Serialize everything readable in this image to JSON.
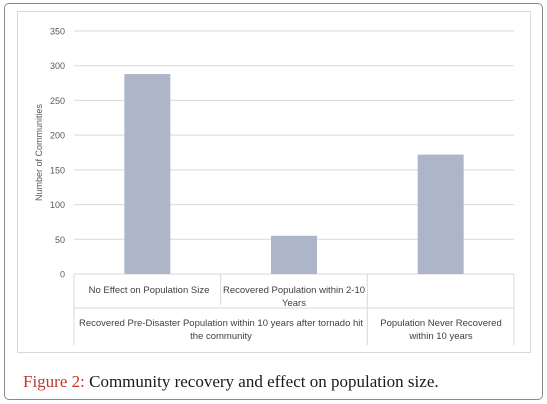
{
  "chart_data": {
    "type": "bar",
    "categories": [
      "No Effect on Population Size",
      "Recovered Population within 2-10 Years",
      "Population Never Recovered within 10 years"
    ],
    "values": [
      288,
      55,
      172
    ],
    "group_labels": [
      "Recovered Pre-Disaster Population within 10 years after tornado hit the community",
      "Population Never Recovered within 10 years"
    ],
    "ylabel": "Number of Communities",
    "xlabel": "",
    "ylim": [
      0,
      350
    ],
    "yticks": [
      0,
      50,
      100,
      150,
      200,
      250,
      300,
      350
    ],
    "grid": true,
    "bar_color": "#adb5c8"
  },
  "figure": {
    "caption_prefix": "Figure 2:",
    "caption_text": " Community recovery and effect on population size."
  }
}
